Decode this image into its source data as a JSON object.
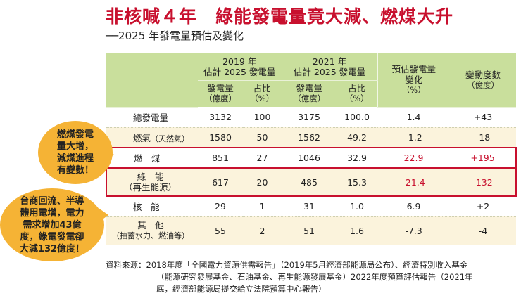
{
  "title": "非核喊４年　綠能發電量竟大減、燃煤大升",
  "subtitle": "──2025 年發電量預估及變化",
  "colors": {
    "title": "#c8102e",
    "header_bg": "#c9df9c",
    "shade_bg": "#fbf3dc",
    "bubble": "#f5b335",
    "highlight": "#c8102e"
  },
  "chart_data": {
    "type": "table",
    "title": "非核喊４年　綠能發電量竟大減、燃煤大升",
    "subtitle": "──2025 年發電量預估及變化",
    "header": {
      "group_2019": [
        "2019 年",
        "估計 2025 發電量"
      ],
      "group_2021": [
        "2021 年",
        "估計 2025 發電量"
      ],
      "change": [
        "預估發電量",
        "變化",
        "（%）"
      ],
      "delta": [
        "變動度數",
        "（億度）"
      ],
      "gen": [
        "發電量",
        "（億度）"
      ],
      "share": [
        "占比",
        "（%）"
      ]
    },
    "rows": [
      {
        "name": "總發電量",
        "note": "",
        "gen2019": "3132",
        "share2019": "100",
        "gen2021": "3175",
        "share2021": "100.0",
        "change_pct": "1.4",
        "delta": "+43"
      },
      {
        "name": "燃氣",
        "note": "（天然氣）",
        "gen2019": "1580",
        "share2019": "50",
        "gen2021": "1562",
        "share2021": "49.2",
        "change_pct": "-1.2",
        "delta": "-18"
      },
      {
        "name": "燃　煤",
        "note": "",
        "gen2019": "851",
        "share2019": "27",
        "gen2021": "1046",
        "share2021": "32.9",
        "change_pct": "22.9",
        "delta": "+195"
      },
      {
        "name": "綠　能",
        "note": "（再生能源）",
        "gen2019": "617",
        "share2019": "20",
        "gen2021": "485",
        "share2021": "15.3",
        "change_pct": "-21.4",
        "delta": "-132"
      },
      {
        "name": "核　能",
        "note": "",
        "gen2019": "29",
        "share2019": "1",
        "gen2021": "31",
        "share2021": "1.0",
        "change_pct": "6.9",
        "delta": "+2"
      },
      {
        "name": "其　他",
        "note": "（抽蓄水力、燃油等）",
        "gen2019": "55",
        "share2019": "2",
        "gen2021": "51",
        "share2021": "1.6",
        "change_pct": "-7.3",
        "delta": "-4"
      }
    ]
  },
  "bubbles": {
    "coal": [
      "燃煤發電",
      "量大增，",
      "減煤進程",
      "有變數！"
    ],
    "green": [
      "台商回流、半導",
      "體用電增，電力",
      "需求增加43億",
      "度，綠電發電卻",
      "大減132億度！"
    ]
  },
  "source": {
    "line1": "資料來源：2018年度「全國電力資源供需報告」（2019年5月經濟部能源局公布）、經濟特別收入基金",
    "line2": "（能源研究發展基金、石油基金、再生能源發展基金）2022年度預算評估報告（2021年",
    "line3": "底，經濟部能源局提交給立法院預算中心報告）"
  }
}
